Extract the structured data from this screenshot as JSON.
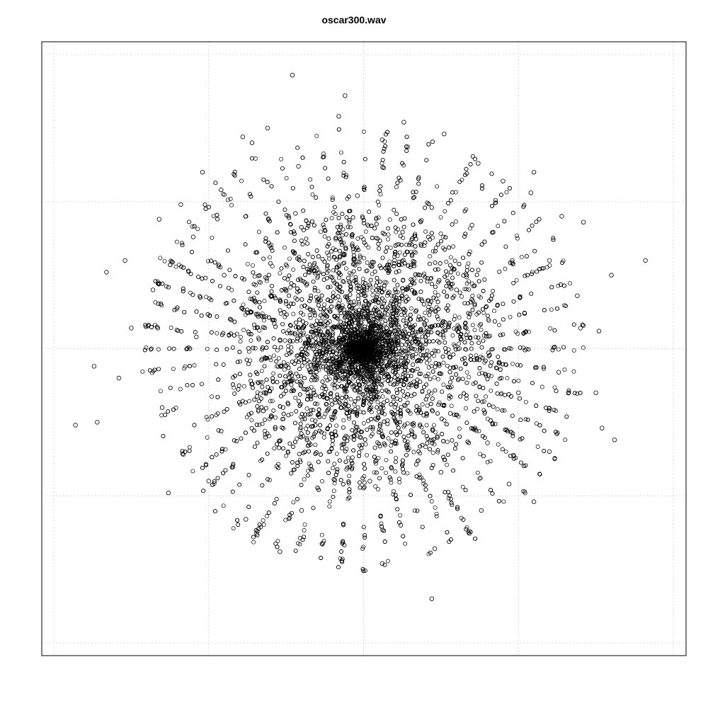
{
  "chart_data": {
    "type": "scatter",
    "title": "oscar300.wav",
    "xlabel": "",
    "ylabel": "",
    "xlim": [
      -1,
      1
    ],
    "ylim": [
      -1,
      1
    ],
    "grid": true,
    "marker": "open-circle",
    "marker_color": "#000000",
    "grid_color": "#d9d9d9",
    "series": [
      {
        "points": [
          [
            -0.23,
            0.93
          ],
          [
            -0.06,
            0.86
          ],
          [
            -0.08,
            0.79
          ],
          [
            0.26,
            0.73
          ],
          [
            0.06,
            0.71
          ],
          [
            -0.36,
            0.7
          ],
          [
            -0.21,
            0.62
          ],
          [
            0.54,
            0.53
          ],
          [
            -0.46,
            0.54
          ],
          [
            -0.59,
            0.49
          ],
          [
            0.64,
            0.45
          ],
          [
            0.71,
            0.43
          ],
          [
            -0.66,
            0.44
          ],
          [
            -0.77,
            0.3
          ],
          [
            -0.83,
            0.26
          ],
          [
            0.91,
            0.3
          ],
          [
            0.8,
            0.25
          ],
          [
            0.69,
            0.18
          ],
          [
            -0.75,
            0.07
          ],
          [
            0.7,
            0.07
          ],
          [
            0.76,
            0.06
          ],
          [
            -0.87,
            -0.06
          ],
          [
            -0.79,
            -0.1
          ],
          [
            0.75,
            -0.15
          ],
          [
            -0.93,
            -0.26
          ],
          [
            -0.86,
            -0.25
          ],
          [
            0.77,
            -0.27
          ],
          [
            0.81,
            -0.31
          ],
          [
            -0.63,
            -0.49
          ],
          [
            0.47,
            -0.46
          ],
          [
            0.55,
            -0.52
          ],
          [
            -0.38,
            -0.58
          ],
          [
            -0.27,
            -0.69
          ],
          [
            0.23,
            -0.68
          ],
          [
            0.06,
            -0.73
          ],
          [
            -0.07,
            -0.72
          ],
          [
            0.22,
            -0.85
          ],
          [
            0.55,
            0.6
          ],
          [
            -0.39,
            0.72
          ],
          [
            0.13,
            0.77
          ],
          [
            -0.31,
            0.75
          ],
          [
            0.37,
            0.63
          ],
          [
            -0.52,
            0.6
          ],
          [
            0.45,
            0.57
          ],
          [
            -0.55,
            0.38
          ],
          [
            0.6,
            0.3
          ],
          [
            -0.68,
            0.2
          ],
          [
            0.63,
            -0.08
          ],
          [
            -0.65,
            -0.2
          ],
          [
            0.6,
            -0.35
          ],
          [
            -0.5,
            -0.45
          ],
          [
            0.38,
            -0.55
          ],
          [
            -0.2,
            -0.55
          ],
          [
            0.12,
            -0.6
          ],
          [
            0.35,
            0.42
          ],
          [
            -0.38,
            0.45
          ],
          [
            0.48,
            0.3
          ],
          [
            -0.45,
            0.25
          ],
          [
            0.52,
            0.12
          ],
          [
            -0.54,
            0.04
          ],
          [
            0.5,
            -0.15
          ],
          [
            -0.46,
            -0.28
          ],
          [
            0.4,
            -0.32
          ],
          [
            -0.28,
            -0.4
          ],
          [
            0.25,
            -0.42
          ],
          [
            0.02,
            -0.45
          ],
          [
            -0.02,
            0.52
          ],
          [
            0.22,
            0.48
          ],
          [
            -0.22,
            0.46
          ],
          [
            0.3,
            0.2
          ],
          [
            -0.3,
            0.18
          ],
          [
            0.28,
            -0.22
          ],
          [
            -0.26,
            -0.2
          ],
          [
            0.1,
            0.3
          ],
          [
            -0.1,
            -0.3
          ],
          [
            0.15,
            0.1
          ],
          [
            -0.15,
            0.05
          ],
          [
            0.0,
            0.0
          ],
          [
            0.05,
            -0.1
          ],
          [
            -0.06,
            0.12
          ]
        ]
      }
    ]
  }
}
